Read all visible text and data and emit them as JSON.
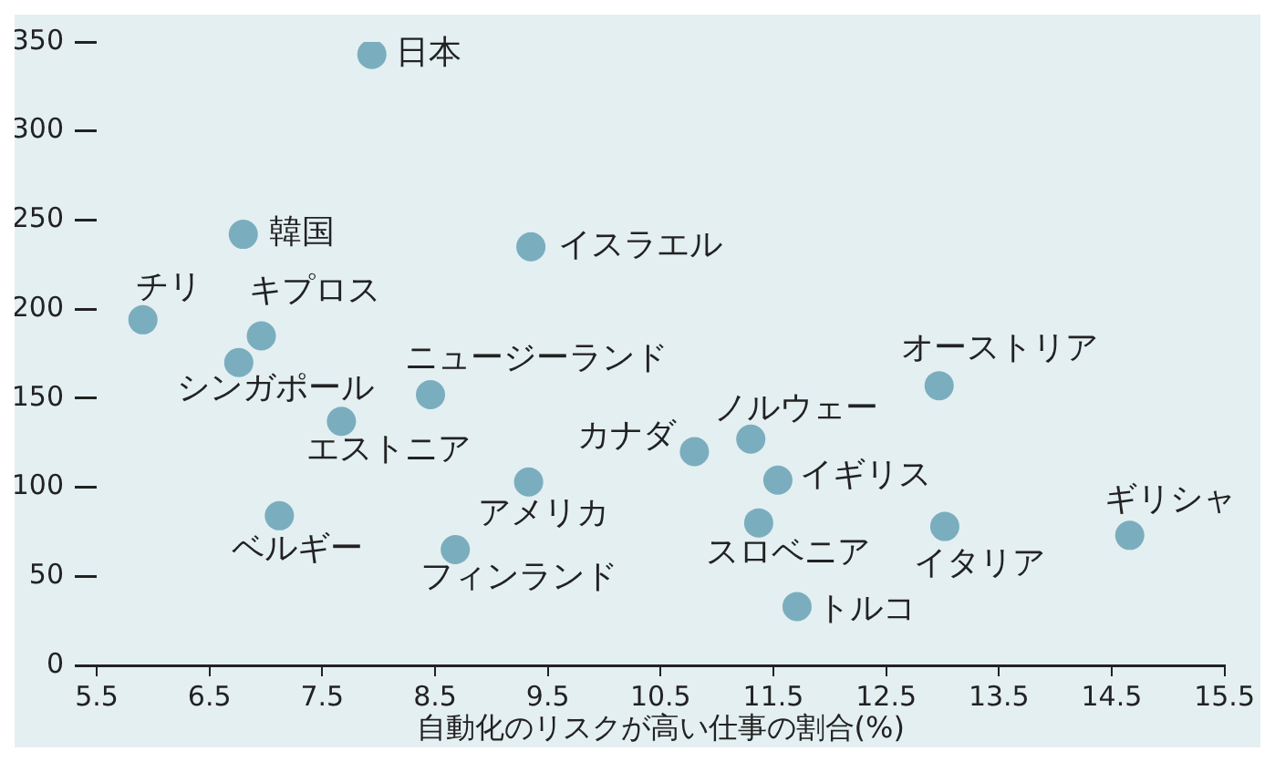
{
  "chart_data": {
    "type": "scatter",
    "xlabel": "自動化のリスクが高い仕事の割合(%)",
    "xlim": [
      5.5,
      15.5
    ],
    "xticks": [
      5.5,
      6.5,
      7.5,
      8.5,
      9.5,
      10.5,
      11.5,
      12.5,
      13.5,
      14.5,
      15.5
    ],
    "ylim": [
      0,
      350
    ],
    "yticks": [
      0,
      50,
      100,
      150,
      200,
      250,
      300,
      350
    ],
    "grid": false,
    "marker": "circle",
    "series": [
      {
        "color": "#7aaebe",
        "x": [
          7.94,
          6.8,
          9.35,
          5.91,
          6.96,
          6.76,
          8.46,
          7.67,
          9.33,
          7.12,
          8.68,
          12.97,
          10.8,
          11.3,
          11.54,
          11.37,
          13.02,
          14.66,
          11.71
        ],
        "values": [
          343,
          242,
          235,
          194,
          185,
          170,
          152,
          137,
          103,
          84,
          65,
          157,
          120,
          127,
          104,
          80,
          78,
          73,
          33
        ]
      }
    ],
    "annotations": [
      {
        "text": "日本",
        "x": 7.94,
        "y": 343
      },
      {
        "text": "韓国",
        "x": 6.8,
        "y": 242
      },
      {
        "text": "イスラエル",
        "x": 9.35,
        "y": 235
      },
      {
        "text": "チリ",
        "x": 5.91,
        "y": 194
      },
      {
        "text": "キプロス",
        "x": 6.96,
        "y": 185
      },
      {
        "text": "シンガポール",
        "x": 6.76,
        "y": 170
      },
      {
        "text": "ニュージーランド",
        "x": 8.46,
        "y": 152
      },
      {
        "text": "エストニア",
        "x": 7.67,
        "y": 137
      },
      {
        "text": "アメリカ",
        "x": 9.33,
        "y": 103
      },
      {
        "text": "ベルギー",
        "x": 7.12,
        "y": 84
      },
      {
        "text": "フィンランド",
        "x": 8.68,
        "y": 65
      },
      {
        "text": "オーストリア",
        "x": 12.97,
        "y": 157
      },
      {
        "text": "カナダ",
        "x": 10.8,
        "y": 120
      },
      {
        "text": "ノルウェー",
        "x": 11.3,
        "y": 127
      },
      {
        "text": "イギリス",
        "x": 11.54,
        "y": 104
      },
      {
        "text": "スロベニア",
        "x": 11.37,
        "y": 80
      },
      {
        "text": "イタリア",
        "x": 13.02,
        "y": 78
      },
      {
        "text": "ギリシャ",
        "x": 14.66,
        "y": 73
      },
      {
        "text": "トルコ",
        "x": 11.71,
        "y": 33
      }
    ]
  }
}
